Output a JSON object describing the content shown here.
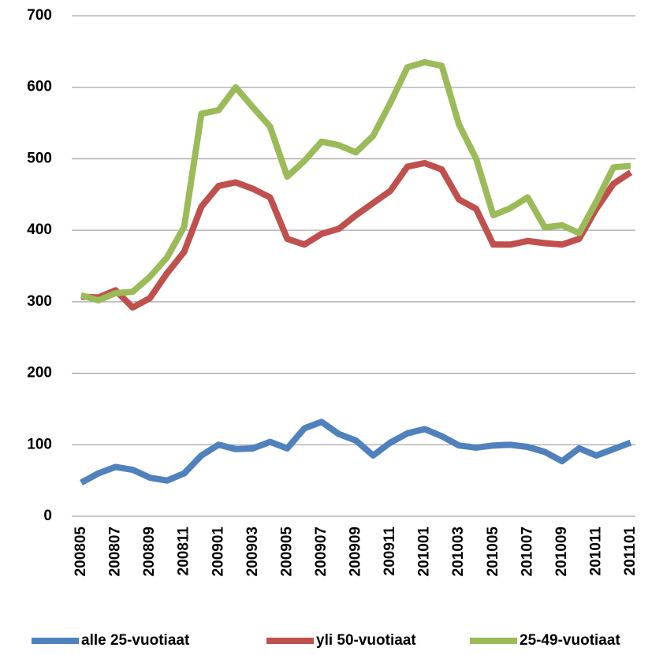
{
  "chart_data": {
    "type": "line",
    "categories": [
      "200805",
      null,
      "200807",
      null,
      "200809",
      null,
      "200811",
      null,
      "200901",
      null,
      "200903",
      null,
      "200905",
      null,
      "200907",
      null,
      "200909",
      null,
      "200911",
      null,
      "201001",
      null,
      "201003",
      null,
      "201005",
      null,
      "201007",
      null,
      "201009",
      null,
      "201011",
      null,
      "201101"
    ],
    "series": [
      {
        "name": "alle 25-vuotiaat",
        "color": "#4f81bd",
        "values": [
          47,
          60,
          69,
          65,
          54,
          50,
          60,
          85,
          100,
          94,
          95,
          104,
          95,
          123,
          132,
          115,
          106,
          85,
          103,
          116,
          122,
          112,
          99,
          96,
          99,
          100,
          97,
          90,
          77,
          95,
          85,
          94,
          103
        ]
      },
      {
        "name": "yli 50-vuotiaat",
        "color": "#c0504d",
        "values": [
          307,
          306,
          316,
          292,
          305,
          340,
          370,
          433,
          462,
          467,
          458,
          446,
          388,
          380,
          395,
          402,
          421,
          438,
          455,
          489,
          494,
          485,
          443,
          430,
          380,
          380,
          385,
          382,
          380,
          388,
          430,
          465,
          481
        ]
      },
      {
        "name": "25-49-vuotiaat",
        "color": "#9bbb59",
        "values": [
          309,
          302,
          312,
          314,
          335,
          362,
          405,
          563,
          568,
          600,
          572,
          545,
          475,
          497,
          524,
          519,
          509,
          532,
          578,
          628,
          635,
          630,
          548,
          500,
          421,
          431,
          446,
          404,
          407,
          396,
          440,
          488,
          490
        ]
      }
    ],
    "ylim": [
      0,
      700
    ],
    "yticks": [
      0,
      100,
      200,
      300,
      400,
      500,
      600,
      700
    ],
    "grid": true,
    "legend": "bottom"
  }
}
